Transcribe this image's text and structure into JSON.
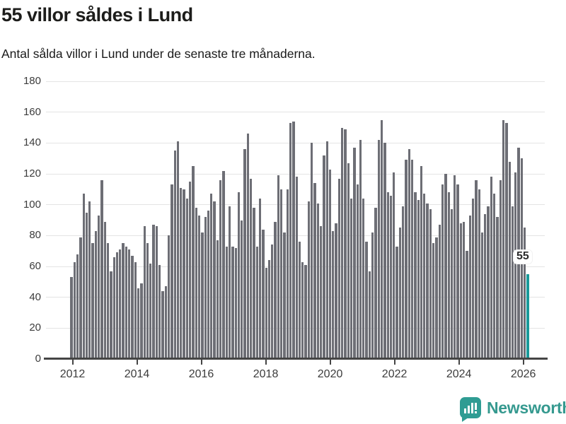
{
  "header": {
    "title": "55 villor såldes i Lund",
    "subtitle": "Antal sålda villor i Lund under de senaste tre månaderna."
  },
  "chart_data": {
    "type": "bar",
    "title": "55 villor såldes i Lund",
    "subtitle": "Antal sålda villor i Lund under de senaste tre månaderna.",
    "ylabel": "",
    "xlabel": "",
    "ylim": [
      0,
      180
    ],
    "grid": true,
    "y_ticks": [
      0,
      20,
      40,
      60,
      80,
      100,
      120,
      140,
      160,
      180
    ],
    "x_tick_years": [
      "2012",
      "2014",
      "2016",
      "2018",
      "2020",
      "2022",
      "2024",
      "2026"
    ],
    "bar_color": "#6d6e75",
    "highlight_color": "#1a9a9a",
    "highlight_value": 55,
    "highlight_label": "55",
    "values": [
      53,
      63,
      68,
      79,
      107,
      95,
      102,
      75,
      83,
      93,
      116,
      89,
      75,
      57,
      66,
      69,
      71,
      75,
      73,
      71,
      67,
      63,
      46,
      49,
      86,
      75,
      62,
      87,
      86,
      61,
      44,
      47,
      80,
      113,
      135,
      141,
      111,
      110,
      104,
      115,
      125,
      98,
      93,
      82,
      92,
      96,
      107,
      102,
      77,
      116,
      122,
      73,
      99,
      73,
      72,
      108,
      90,
      136,
      146,
      117,
      98,
      73,
      104,
      84,
      59,
      64,
      74,
      89,
      119,
      110,
      82,
      110,
      153,
      154,
      118,
      76,
      63,
      61,
      102,
      140,
      114,
      101,
      86,
      132,
      141,
      123,
      83,
      88,
      117,
      150,
      149,
      127,
      104,
      137,
      113,
      142,
      104,
      76,
      57,
      82,
      98,
      142,
      155,
      140,
      108,
      106,
      121,
      73,
      85,
      99,
      129,
      136,
      129,
      108,
      103,
      125,
      107,
      101,
      97,
      75,
      79,
      87,
      113,
      120,
      108,
      97,
      119,
      113,
      88,
      89,
      70,
      93,
      104,
      116,
      110,
      82,
      94,
      99,
      118,
      107,
      92,
      116,
      155,
      153,
      128,
      99,
      121,
      137,
      130,
      85,
      55
    ]
  },
  "footer": {
    "brand": "Newsworthy"
  }
}
